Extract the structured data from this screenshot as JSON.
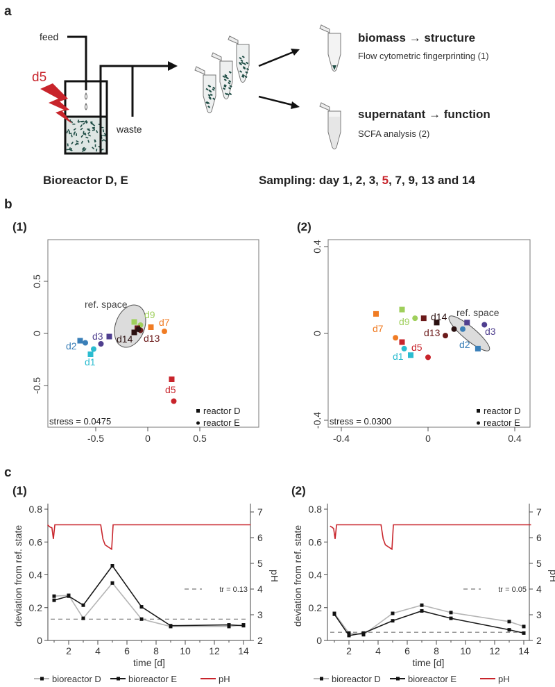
{
  "panel_a": {
    "label": "a",
    "feed": "feed",
    "waste": "waste",
    "disturbance": "d5",
    "reactor_title": "Bioreactor D, E",
    "biomass_title": "biomass  →  structure",
    "biomass_sub": "Flow cytometric fingerprinting (1)",
    "supernatant_title": "supernatant  →  function",
    "supernatant_sub": "SCFA analysis (2)",
    "sampling_prefix": "Sampling: day 1, 2, 3, ",
    "sampling_highlight": "5",
    "sampling_suffix": ", 7, 9, 13 and 14",
    "colors": {
      "disturbance": "#c8242b",
      "biomass": "#1f4d45"
    }
  },
  "panel_b": {
    "label": "b",
    "sub1": "(1)",
    "sub2": "(2)"
  },
  "panel_c": {
    "label": "c",
    "sub1": "(1)",
    "sub2": "(2)"
  },
  "chart_data": [
    {
      "type": "scatter",
      "title": "(1)",
      "xlim": [
        -1.0,
        1.07
      ],
      "ylim": [
        -0.9,
        0.9
      ],
      "xticks": [
        "-0.5",
        "0",
        "0.5"
      ],
      "xtick_values": [
        -0.5,
        0,
        0.5
      ],
      "yticks": [
        "-0.5",
        "0",
        "0.5"
      ],
      "ytick_values": [
        -0.5,
        0,
        0.5
      ],
      "annotation": "stress = 0.0475",
      "ref_space": {
        "label": "ref. space",
        "center": [
          -0.17,
          0.07
        ],
        "radii": [
          0.14,
          0.21
        ],
        "angle_deg": 20
      },
      "legend": [
        {
          "marker": "square",
          "label": "reactor D"
        },
        {
          "marker": "circle",
          "label": "reactor E"
        }
      ],
      "legend_position": "bottom-right",
      "groups": [
        {
          "label": "d1",
          "color": "#2bbcd0",
          "D": [
            -0.55,
            -0.2
          ],
          "E": [
            -0.52,
            -0.15
          ]
        },
        {
          "label": "d2",
          "color": "#3a7fb8",
          "D": [
            -0.65,
            -0.07
          ],
          "E": [
            -0.6,
            -0.09
          ]
        },
        {
          "label": "d3",
          "color": "#4f3f8f",
          "D": [
            -0.37,
            -0.03
          ],
          "E": [
            -0.45,
            -0.1
          ]
        },
        {
          "label": "d5",
          "color": "#c8242b",
          "D": [
            0.23,
            -0.44
          ],
          "E": [
            0.25,
            -0.65
          ]
        },
        {
          "label": "d7",
          "color": "#f07c24",
          "D": [
            0.03,
            0.06
          ],
          "E": [
            0.16,
            0.02
          ]
        },
        {
          "label": "d9",
          "color": "#9fcf5b",
          "D": [
            -0.13,
            0.11
          ],
          "E": [
            -0.07,
            0.08
          ]
        },
        {
          "label": "d13",
          "color": "#6b1a1a",
          "D": [
            -0.1,
            0.05
          ],
          "E": [
            -0.07,
            0.03
          ]
        },
        {
          "label": "d14",
          "color": "#2a1010",
          "D": [
            -0.13,
            0.01
          ],
          "E": [
            -0.09,
            0.04
          ]
        }
      ]
    },
    {
      "type": "scatter",
      "title": "(2)",
      "xlim": [
        -0.46,
        0.47
      ],
      "ylim": [
        -0.43,
        0.43
      ],
      "xticks": [
        "-0.4",
        "0",
        "0.4"
      ],
      "xtick_values": [
        -0.4,
        0,
        0.4
      ],
      "yticks": [
        "-0.4",
        "0",
        "0.4"
      ],
      "ytick_values": [
        -0.4,
        0,
        0.4
      ],
      "annotation": "stress = 0.0300",
      "ref_space": {
        "label": "ref. space",
        "center": [
          0.19,
          0.0
        ],
        "radii": [
          0.12,
          0.03
        ],
        "angle_deg": 40
      },
      "legend": [
        {
          "marker": "square",
          "label": "reactor D"
        },
        {
          "marker": "circle",
          "label": "reactor E"
        }
      ],
      "legend_position": "bottom-right",
      "groups": [
        {
          "label": "d1",
          "color": "#2bbcd0",
          "D": [
            -0.08,
            -0.1
          ],
          "E": [
            -0.11,
            -0.07
          ]
        },
        {
          "label": "d2",
          "color": "#3a7fb8",
          "D": [
            0.23,
            -0.07
          ],
          "E": [
            0.16,
            0.02
          ]
        },
        {
          "label": "d3",
          "color": "#4f3f8f",
          "D": [
            0.18,
            0.05
          ],
          "E": [
            0.26,
            0.04
          ]
        },
        {
          "label": "d5",
          "color": "#c8242b",
          "D": [
            -0.12,
            -0.04
          ],
          "E": [
            0.0,
            -0.11
          ]
        },
        {
          "label": "d7",
          "color": "#f07c24",
          "D": [
            -0.24,
            0.09
          ],
          "E": [
            -0.15,
            -0.02
          ]
        },
        {
          "label": "d9",
          "color": "#9fcf5b",
          "D": [
            -0.12,
            0.11
          ],
          "E": [
            -0.06,
            0.07
          ]
        },
        {
          "label": "d13",
          "color": "#6b1a1a",
          "D": [
            -0.02,
            0.07
          ],
          "E": [
            0.08,
            -0.01
          ]
        },
        {
          "label": "d14",
          "color": "#2a1010",
          "D": [
            0.04,
            0.05
          ],
          "E": [
            0.12,
            0.02
          ]
        }
      ]
    },
    {
      "type": "line",
      "title": "(1)",
      "xlabel": "time [d]",
      "ylabel": "deviation from ref. state",
      "y2label": "pH",
      "xlim": [
        0.55,
        14.5
      ],
      "ylim": [
        0,
        0.8
      ],
      "y2lim": [
        2,
        7.3
      ],
      "xticks": [
        "2",
        "4",
        "6",
        "8",
        "10",
        "12",
        "14"
      ],
      "yticks": [
        "0",
        "0.2",
        "0.4",
        "0.6",
        "0.8"
      ],
      "y2ticks": [
        "2",
        "3",
        "4",
        "5",
        "6",
        "7"
      ],
      "threshold": {
        "label": "tr = 0.13",
        "value": 0.13
      },
      "x": [
        1,
        2,
        3,
        5,
        7,
        9,
        13,
        14
      ],
      "series": [
        {
          "name": "bioreactor D",
          "color": "#b5b5b5",
          "values": [
            0.27,
            0.275,
            0.135,
            0.35,
            0.13,
            0.085,
            0.085,
            0.095
          ]
        },
        {
          "name": "bioreactor E",
          "color": "#1a1a1a",
          "values": [
            0.245,
            0.27,
            0.215,
            0.455,
            0.205,
            0.09,
            0.095,
            0.09
          ]
        }
      ],
      "ph": {
        "name": "pH",
        "color": "#c8242b",
        "points": [
          [
            0.55,
            6.5
          ],
          [
            0.7,
            6.42
          ],
          [
            0.85,
            6.38
          ],
          [
            0.95,
            5.95
          ],
          [
            1.05,
            6.5
          ],
          [
            4.2,
            6.5
          ],
          [
            4.35,
            5.95
          ],
          [
            4.5,
            5.72
          ],
          [
            4.95,
            5.55
          ],
          [
            5.05,
            6.5
          ],
          [
            14.5,
            6.5
          ]
        ]
      },
      "legend_position": "bottom"
    },
    {
      "type": "line",
      "title": "(2)",
      "xlabel": "time [d]",
      "ylabel": "deviation from ref. state",
      "y2label": "pH",
      "xlim": [
        0.7,
        14.5
      ],
      "ylim": [
        0,
        0.8
      ],
      "y2lim": [
        2,
        7.3
      ],
      "xticks": [
        "2",
        "4",
        "6",
        "8",
        "10",
        "12",
        "14"
      ],
      "yticks": [
        "0",
        "0.2",
        "0.4",
        "0.6",
        "0.8"
      ],
      "y2ticks": [
        "2",
        "3",
        "4",
        "5",
        "6",
        "7"
      ],
      "threshold": {
        "label": "tr = 0.05",
        "value": 0.05
      },
      "x": [
        1,
        2,
        3,
        5,
        7,
        9,
        13,
        14
      ],
      "series": [
        {
          "name": "bioreactor D",
          "color": "#b5b5b5",
          "values": [
            0.165,
            0.045,
            0.035,
            0.165,
            0.215,
            0.17,
            0.115,
            0.085
          ]
        },
        {
          "name": "bioreactor E",
          "color": "#1a1a1a",
          "values": [
            0.16,
            0.03,
            0.045,
            0.12,
            0.18,
            0.135,
            0.065,
            0.045
          ]
        }
      ],
      "ph": {
        "name": "pH",
        "color": "#c8242b",
        "points": [
          [
            0.7,
            6.45
          ],
          [
            0.85,
            6.4
          ],
          [
            0.95,
            6.35
          ],
          [
            1.05,
            5.95
          ],
          [
            1.15,
            6.5
          ],
          [
            4.2,
            6.5
          ],
          [
            4.35,
            5.95
          ],
          [
            4.5,
            5.72
          ],
          [
            4.95,
            5.55
          ],
          [
            5.05,
            6.5
          ],
          [
            14.5,
            6.5
          ]
        ]
      },
      "legend_position": "bottom"
    }
  ]
}
